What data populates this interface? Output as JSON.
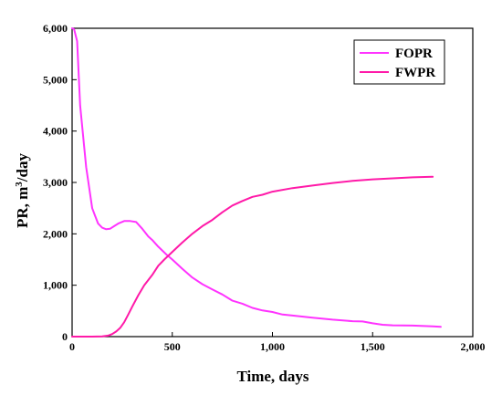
{
  "chart_data": {
    "type": "line",
    "title": "",
    "xlabel": "Time, days",
    "ylabel_main": "PR, m",
    "ylabel_sup": "3",
    "ylabel_tail": "/day",
    "xlim": [
      0,
      2000
    ],
    "ylim": [
      0,
      6000
    ],
    "x_ticks": [
      0,
      500,
      1000,
      1500,
      2000
    ],
    "x_tick_labels": [
      "0",
      "500",
      "1,000",
      "1,500",
      "2,000"
    ],
    "y_ticks": [
      0,
      1000,
      2000,
      3000,
      4000,
      5000,
      6000
    ],
    "y_tick_labels": [
      "0",
      "1,000",
      "2,000",
      "3,000",
      "4,000",
      "5,000",
      "6,000"
    ],
    "grid": false,
    "legend_position": "top-right",
    "series": [
      {
        "name": "FOPR",
        "color": "#ff33ff",
        "x": [
          0,
          10,
          25,
          40,
          50,
          60,
          70,
          85,
          100,
          115,
          130,
          150,
          170,
          190,
          210,
          230,
          260,
          290,
          320,
          350,
          380,
          400,
          430,
          470,
          500,
          550,
          600,
          650,
          700,
          750,
          800,
          850,
          900,
          950,
          1000,
          1050,
          1100,
          1200,
          1300,
          1400,
          1450,
          1500,
          1550,
          1600,
          1700,
          1800,
          1840
        ],
        "y": [
          6000,
          5980,
          5750,
          4500,
          4100,
          3700,
          3300,
          2900,
          2500,
          2350,
          2200,
          2120,
          2090,
          2100,
          2150,
          2200,
          2250,
          2250,
          2230,
          2100,
          1950,
          1880,
          1750,
          1600,
          1500,
          1320,
          1150,
          1020,
          920,
          820,
          700,
          640,
          560,
          510,
          480,
          430,
          410,
          370,
          330,
          300,
          295,
          260,
          230,
          220,
          215,
          200,
          190
        ]
      },
      {
        "name": "FWPR",
        "color": "#ff1aa8",
        "x": [
          0,
          100,
          150,
          180,
          200,
          220,
          240,
          260,
          280,
          300,
          330,
          360,
          400,
          430,
          460,
          500,
          550,
          600,
          650,
          700,
          750,
          800,
          850,
          900,
          950,
          1000,
          1100,
          1200,
          1300,
          1400,
          1500,
          1600,
          1700,
          1800
        ],
        "y": [
          0,
          0,
          5,
          20,
          50,
          100,
          170,
          280,
          430,
          580,
          800,
          1000,
          1200,
          1380,
          1500,
          1650,
          1830,
          2000,
          2150,
          2270,
          2420,
          2550,
          2640,
          2720,
          2760,
          2820,
          2890,
          2940,
          2990,
          3030,
          3060,
          3080,
          3100,
          3110
        ]
      }
    ]
  }
}
